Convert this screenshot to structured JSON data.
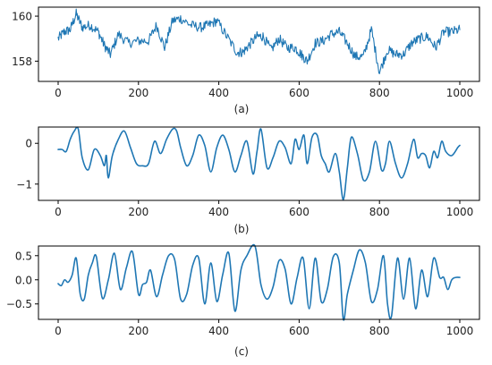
{
  "colors": {
    "series": "#1f77b4",
    "axes": "#000000",
    "text": "#222222"
  },
  "chart_data": [
    {
      "type": "line",
      "caption": "(a)",
      "xlim": [
        0,
        1000
      ],
      "ylim": [
        157.1,
        160.4
      ],
      "x_ticks": [
        0,
        200,
        400,
        600,
        800,
        1000
      ],
      "y_ticks": [
        158,
        160
      ],
      "grid": false,
      "series": [
        {
          "noisy": true,
          "x": [
            0,
            15,
            30,
            45,
            60,
            80,
            100,
            115,
            130,
            150,
            175,
            200,
            225,
            245,
            265,
            285,
            305,
            330,
            355,
            375,
            395,
            420,
            445,
            460,
            475,
            495,
            510,
            530,
            550,
            570,
            590,
            605,
            620,
            640,
            660,
            680,
            700,
            720,
            740,
            760,
            780,
            800,
            820,
            840,
            860,
            880,
            900,
            920,
            940,
            960,
            980,
            1000
          ],
          "y": [
            159.0,
            159.3,
            159.4,
            160.1,
            159.5,
            159.6,
            159.3,
            158.7,
            158.3,
            159.2,
            158.8,
            158.9,
            158.9,
            159.6,
            158.6,
            159.8,
            159.9,
            159.6,
            159.5,
            159.6,
            159.8,
            159.1,
            158.4,
            158.4,
            158.7,
            159.1,
            159.1,
            158.5,
            159.0,
            158.6,
            158.6,
            158.3,
            158.0,
            158.8,
            158.9,
            159.2,
            159.3,
            158.8,
            158.2,
            158.2,
            159.4,
            157.5,
            158.5,
            158.3,
            158.3,
            158.8,
            159.0,
            159.1,
            158.6,
            159.3,
            159.3,
            159.4
          ]
        }
      ]
    },
    {
      "type": "line",
      "caption": "(b)",
      "xlim": [
        0,
        1000
      ],
      "ylim": [
        -1.4,
        0.4
      ],
      "x_ticks": [
        0,
        200,
        400,
        600,
        800,
        1000
      ],
      "y_ticks": [
        0,
        -1
      ],
      "grid": false,
      "series": [
        {
          "noisy": false,
          "x": [
            0,
            10,
            20,
            30,
            40,
            50,
            60,
            75,
            90,
            105,
            115,
            120,
            125,
            135,
            150,
            165,
            180,
            195,
            210,
            225,
            240,
            255,
            270,
            285,
            295,
            305,
            320,
            335,
            350,
            365,
            380,
            395,
            410,
            425,
            440,
            455,
            470,
            485,
            495,
            505,
            520,
            535,
            550,
            565,
            580,
            590,
            600,
            612,
            620,
            632,
            645,
            655,
            665,
            675,
            690,
            700,
            710,
            720,
            730,
            745,
            760,
            775,
            790,
            805,
            815,
            825,
            840,
            855,
            870,
            885,
            895,
            905,
            915,
            925,
            935,
            945,
            955,
            965,
            980,
            995,
            1000
          ],
          "y": [
            -0.15,
            -0.15,
            -0.2,
            0.1,
            0.3,
            0.35,
            -0.35,
            -0.65,
            -0.15,
            -0.3,
            -0.55,
            -0.3,
            -0.85,
            -0.3,
            0.1,
            0.3,
            -0.1,
            -0.5,
            -0.55,
            -0.5,
            0.05,
            -0.25,
            0.1,
            0.35,
            0.3,
            -0.1,
            -0.55,
            -0.3,
            0.2,
            -0.05,
            -0.7,
            -0.1,
            0.2,
            -0.15,
            -0.7,
            -0.3,
            0.05,
            -0.75,
            -0.2,
            0.35,
            -0.6,
            -0.35,
            0.05,
            -0.1,
            -0.5,
            0.1,
            -0.15,
            0.2,
            -0.5,
            0.15,
            0.2,
            -0.3,
            -0.5,
            -0.7,
            -0.25,
            -0.7,
            -1.38,
            -0.6,
            0.15,
            -0.25,
            -0.9,
            -0.7,
            0.05,
            -0.65,
            -0.5,
            0.05,
            -0.5,
            -0.85,
            -0.5,
            0.1,
            -0.35,
            -0.25,
            -0.3,
            -0.6,
            -0.2,
            -0.35,
            0.05,
            -0.2,
            -0.3,
            -0.1,
            -0.05
          ]
        }
      ]
    },
    {
      "type": "line",
      "caption": "(c)",
      "xlim": [
        0,
        1000
      ],
      "ylim": [
        -0.82,
        0.7
      ],
      "x_ticks": [
        0,
        200,
        400,
        600,
        800,
        1000
      ],
      "y_ticks": [
        0.5,
        0.0,
        -0.5
      ],
      "grid": false,
      "series": [
        {
          "noisy": false,
          "x": [
            0,
            8,
            16,
            25,
            35,
            45,
            55,
            65,
            75,
            85,
            95,
            110,
            125,
            140,
            155,
            170,
            185,
            200,
            210,
            220,
            230,
            245,
            260,
            275,
            290,
            305,
            320,
            335,
            350,
            365,
            380,
            395,
            410,
            425,
            440,
            455,
            470,
            490,
            505,
            520,
            535,
            550,
            565,
            580,
            595,
            610,
            625,
            640,
            655,
            670,
            685,
            700,
            710,
            720,
            735,
            750,
            765,
            780,
            795,
            810,
            820,
            830,
            845,
            860,
            875,
            890,
            905,
            920,
            935,
            950,
            960,
            970,
            980,
            990,
            1000
          ],
          "y": [
            -0.08,
            -0.12,
            0.0,
            -0.05,
            0.1,
            0.45,
            -0.3,
            -0.4,
            0.1,
            0.35,
            0.48,
            -0.38,
            0.0,
            0.55,
            -0.2,
            0.25,
            0.58,
            -0.3,
            -0.1,
            -0.05,
            0.2,
            -0.35,
            0.1,
            0.5,
            0.42,
            -0.4,
            -0.3,
            0.3,
            0.45,
            -0.5,
            0.35,
            -0.45,
            0.12,
            0.55,
            -0.65,
            0.2,
            0.5,
            0.7,
            -0.1,
            -0.4,
            -0.15,
            0.4,
            0.22,
            -0.5,
            0.05,
            0.45,
            -0.6,
            0.45,
            -0.45,
            -0.2,
            0.48,
            0.35,
            -0.82,
            -0.3,
            0.2,
            0.62,
            0.35,
            -0.45,
            -0.2,
            0.5,
            -0.5,
            -0.75,
            0.45,
            -0.4,
            0.45,
            -0.6,
            0.2,
            -0.35,
            0.45,
            0.05,
            0.05,
            -0.2,
            0.0,
            0.05,
            0.05
          ]
        }
      ]
    }
  ]
}
